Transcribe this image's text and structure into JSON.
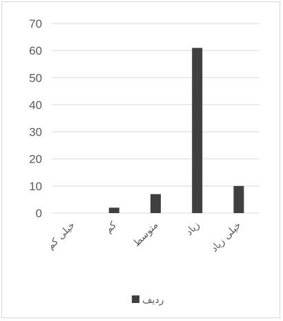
{
  "chart_data": {
    "type": "bar",
    "categories": [
      "خیلی کم",
      "کم",
      "متوسط",
      "زیاد",
      "خیلی زیاد"
    ],
    "series": [
      {
        "name": "ردیف",
        "values": [
          0,
          2,
          7,
          61,
          10
        ],
        "color": "#404040"
      }
    ],
    "yticks": [
      "0",
      "10",
      "20",
      "30",
      "40",
      "50",
      "60",
      "70"
    ],
    "ylim": [
      0,
      70
    ],
    "grid": true,
    "legend_position": "bottom"
  }
}
